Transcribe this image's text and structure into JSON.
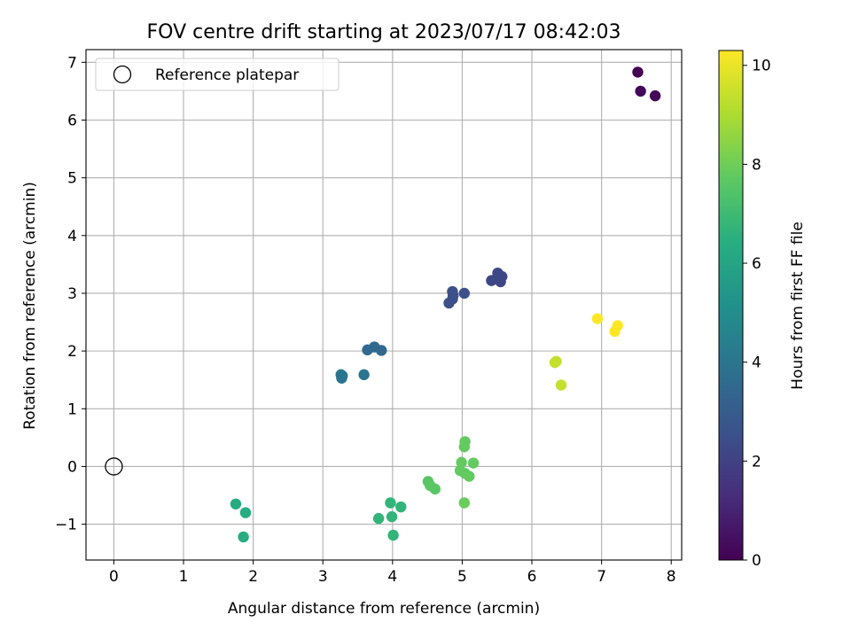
{
  "chart_data": {
    "type": "scatter",
    "title": "FOV centre drift starting at 2023/07/17 08:42:03",
    "xlabel": "Angular distance from reference (arcmin)",
    "ylabel": "Rotation from reference (arcmin)",
    "xlim": [
      -0.4,
      8.15
    ],
    "ylim": [
      -1.62,
      7.22
    ],
    "xticks": [
      0,
      1,
      2,
      3,
      4,
      5,
      6,
      7,
      8
    ],
    "yticks": [
      -1,
      0,
      1,
      2,
      3,
      4,
      5,
      6,
      7
    ],
    "ytick_labels": [
      "−1",
      "0",
      "1",
      "2",
      "3",
      "4",
      "5",
      "6",
      "7"
    ],
    "grid": true,
    "legend": {
      "placement": "upper-left",
      "entries": [
        "Reference platepar"
      ]
    },
    "reference_point": {
      "x": 0,
      "y": 0
    },
    "colorbar": {
      "label": "Hours from first FF file",
      "range": [
        0,
        10.3
      ],
      "ticks": [
        0,
        2,
        4,
        6,
        8,
        10
      ],
      "colormap": "viridis"
    },
    "points": [
      {
        "x": 7.52,
        "y": 6.83,
        "t": 0.0
      },
      {
        "x": 7.56,
        "y": 6.5,
        "t": 0.1
      },
      {
        "x": 7.77,
        "y": 6.42,
        "t": 0.2
      },
      {
        "x": 5.51,
        "y": 3.35,
        "t": 2.2
      },
      {
        "x": 5.57,
        "y": 3.29,
        "t": 2.2
      },
      {
        "x": 5.42,
        "y": 3.22,
        "t": 2.2
      },
      {
        "x": 5.55,
        "y": 3.2,
        "t": 2.2
      },
      {
        "x": 4.86,
        "y": 3.03,
        "t": 2.5
      },
      {
        "x": 4.87,
        "y": 2.96,
        "t": 2.5
      },
      {
        "x": 5.03,
        "y": 3.0,
        "t": 2.5
      },
      {
        "x": 4.86,
        "y": 2.9,
        "t": 2.5
      },
      {
        "x": 4.81,
        "y": 2.83,
        "t": 2.5
      },
      {
        "x": 3.74,
        "y": 2.07,
        "t": 3.5
      },
      {
        "x": 3.64,
        "y": 2.02,
        "t": 3.5
      },
      {
        "x": 3.84,
        "y": 2.01,
        "t": 3.5
      },
      {
        "x": 3.26,
        "y": 1.59,
        "t": 4.0
      },
      {
        "x": 3.28,
        "y": 1.57,
        "t": 4.0
      },
      {
        "x": 3.27,
        "y": 1.53,
        "t": 4.0
      },
      {
        "x": 3.59,
        "y": 1.59,
        "t": 4.0
      },
      {
        "x": 1.75,
        "y": -0.65,
        "t": 6.3
      },
      {
        "x": 1.89,
        "y": -0.8,
        "t": 6.3
      },
      {
        "x": 1.86,
        "y": -1.22,
        "t": 6.3
      },
      {
        "x": 3.97,
        "y": -0.63,
        "t": 6.7
      },
      {
        "x": 4.12,
        "y": -0.7,
        "t": 6.7
      },
      {
        "x": 3.99,
        "y": -0.87,
        "t": 6.7
      },
      {
        "x": 3.8,
        "y": -0.9,
        "t": 6.7
      },
      {
        "x": 4.01,
        "y": -1.19,
        "t": 6.7
      },
      {
        "x": 4.51,
        "y": -0.26,
        "t": 7.6
      },
      {
        "x": 4.54,
        "y": -0.33,
        "t": 7.6
      },
      {
        "x": 4.61,
        "y": -0.39,
        "t": 7.6
      },
      {
        "x": 5.04,
        "y": 0.43,
        "t": 7.8
      },
      {
        "x": 5.03,
        "y": 0.34,
        "t": 7.8
      },
      {
        "x": 5.16,
        "y": 0.06,
        "t": 7.8
      },
      {
        "x": 4.99,
        "y": 0.07,
        "t": 7.8
      },
      {
        "x": 4.97,
        "y": -0.07,
        "t": 7.8
      },
      {
        "x": 5.04,
        "y": -0.12,
        "t": 7.8
      },
      {
        "x": 5.1,
        "y": -0.17,
        "t": 7.8
      },
      {
        "x": 5.03,
        "y": -0.63,
        "t": 7.9
      },
      {
        "x": 6.33,
        "y": 1.8,
        "t": 9.4
      },
      {
        "x": 6.35,
        "y": 1.82,
        "t": 9.4
      },
      {
        "x": 6.42,
        "y": 1.41,
        "t": 9.4
      },
      {
        "x": 6.94,
        "y": 2.56,
        "t": 10.3
      },
      {
        "x": 7.23,
        "y": 2.44,
        "t": 10.3
      },
      {
        "x": 7.19,
        "y": 2.34,
        "t": 10.3
      }
    ]
  }
}
